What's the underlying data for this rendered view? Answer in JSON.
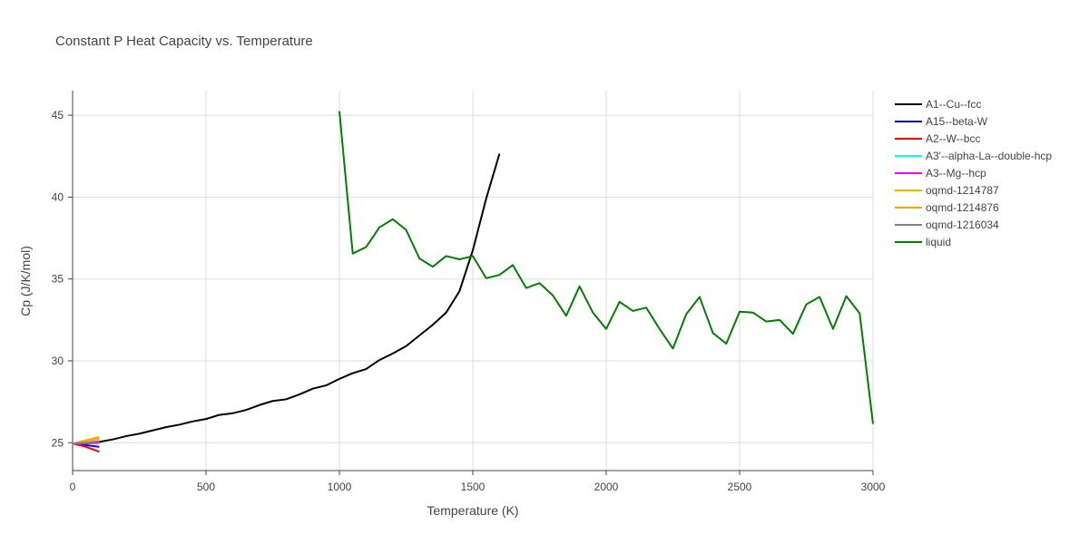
{
  "chart_data": {
    "type": "line",
    "title": "Constant P Heat Capacity vs. Temperature",
    "xlabel": "Temperature (K)",
    "ylabel": "Cp (J/K/mol)",
    "xlim": [
      0,
      3000
    ],
    "ylim": [
      23.3,
      46.5
    ],
    "xticks": [
      0,
      500,
      1000,
      1500,
      2000,
      2500,
      3000
    ],
    "xtick_labels": [
      "0",
      "500",
      "1000",
      "1500",
      "2000",
      "2500",
      "3000"
    ],
    "yticks": [
      25,
      30,
      35,
      40,
      45
    ],
    "ytick_labels": [
      "25",
      "30",
      "35",
      "40",
      "45"
    ],
    "grid": true,
    "legend_position": "right",
    "series": [
      {
        "name": "A1--Cu--fcc",
        "color": "#000000",
        "x": [
          0,
          50,
          100,
          150,
          200,
          250,
          300,
          350,
          400,
          450,
          500,
          550,
          600,
          650,
          700,
          750,
          800,
          850,
          900,
          950,
          1000,
          1050,
          1100,
          1150,
          1200,
          1250,
          1300,
          1350,
          1400,
          1450,
          1500,
          1550,
          1600
        ],
        "y": [
          24.95,
          25.0,
          25.05,
          25.2,
          25.4,
          25.55,
          25.75,
          25.95,
          26.1,
          26.3,
          26.45,
          26.7,
          26.8,
          27.0,
          27.3,
          27.55,
          27.65,
          27.95,
          28.3,
          28.5,
          28.9,
          29.25,
          29.5,
          30.05,
          30.45,
          30.9,
          31.55,
          32.2,
          32.95,
          34.25,
          36.75,
          39.9,
          42.65
        ]
      },
      {
        "name": "A15--beta-W",
        "color": "#0000ff",
        "x": [
          0,
          50,
          100
        ],
        "y": [
          24.95,
          24.85,
          24.75
        ]
      },
      {
        "name": "A2--W--bcc",
        "color": "#ff0000",
        "x": [
          0,
          50,
          100
        ],
        "y": [
          24.95,
          24.75,
          24.45
        ]
      },
      {
        "name": "A3'--alpha-La--double-hcp",
        "color": "#00ffff",
        "x": [
          0,
          50,
          100
        ],
        "y": [
          24.95,
          25.0,
          25.05
        ]
      },
      {
        "name": "A3--Mg--hcp",
        "color": "#ff00ff",
        "x": [
          0,
          50,
          100
        ],
        "y": [
          24.95,
          24.95,
          25.0
        ]
      },
      {
        "name": "oqmd-1214787",
        "color": "#e6b800",
        "x": [
          0,
          50,
          100
        ],
        "y": [
          24.95,
          25.1,
          25.25
        ]
      },
      {
        "name": "oqmd-1214876",
        "color": "#ffa500",
        "x": [
          0,
          50,
          100
        ],
        "y": [
          24.95,
          25.15,
          25.35
        ]
      },
      {
        "name": "oqmd-1216034",
        "color": "#808080",
        "x": [
          0,
          50,
          100
        ],
        "y": [
          24.95,
          25.0,
          25.1
        ]
      },
      {
        "name": "liquid",
        "color": "#008000",
        "x": [
          1000,
          1050,
          1100,
          1150,
          1200,
          1250,
          1300,
          1350,
          1400,
          1450,
          1500,
          1550,
          1600,
          1650,
          1700,
          1750,
          1800,
          1850,
          1900,
          1950,
          2000,
          2050,
          2100,
          2150,
          2200,
          2250,
          2300,
          2350,
          2400,
          2450,
          2500,
          2550,
          2600,
          2650,
          2700,
          2750,
          2800,
          2850,
          2900,
          2950,
          3000
        ],
        "y": [
          45.25,
          36.55,
          36.95,
          38.15,
          38.65,
          38.0,
          36.25,
          35.75,
          36.4,
          36.2,
          36.4,
          35.05,
          35.25,
          35.85,
          34.45,
          34.75,
          34.0,
          32.75,
          34.55,
          32.95,
          31.95,
          33.6,
          33.05,
          33.25,
          31.95,
          30.75,
          32.85,
          33.9,
          31.7,
          31.05,
          33.0,
          32.95,
          32.4,
          32.5,
          31.65,
          33.45,
          33.9,
          31.95,
          33.95,
          32.9,
          26.15
        ]
      }
    ]
  }
}
